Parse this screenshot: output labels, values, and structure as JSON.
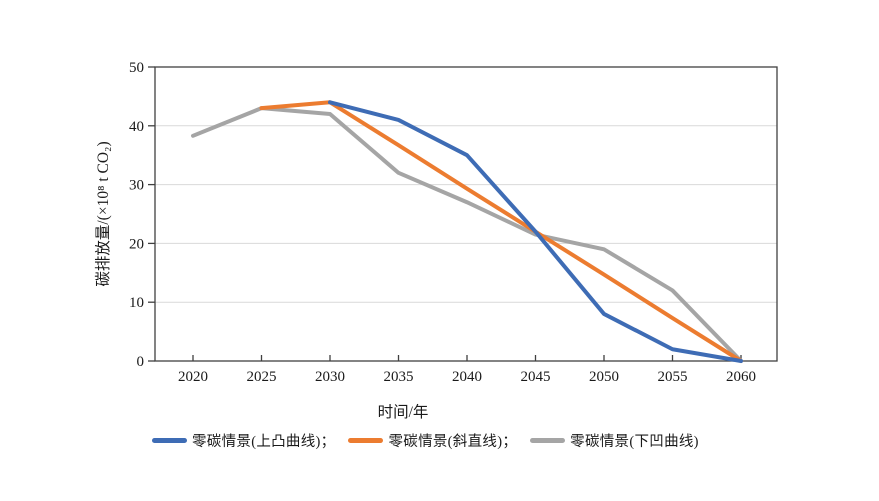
{
  "figure": {
    "background": "#ffffff"
  },
  "chart_data": {
    "type": "line",
    "title": "",
    "xlabel": "时间/年",
    "ylabel": "碳排放量/(×10⁸ t CO₂)",
    "x": [
      2020,
      2025,
      2030,
      2035,
      2040,
      2045,
      2050,
      2055,
      2060
    ],
    "x_tick_labels": [
      "2020",
      "2025",
      "2030",
      "2035",
      "2040",
      "2045",
      "2050",
      "2055",
      "2060"
    ],
    "y_ticks": [
      0,
      10,
      20,
      30,
      40,
      50
    ],
    "ylim": [
      0,
      50
    ],
    "grid": "horizontal",
    "legend_position": "bottom",
    "series": [
      {
        "name": "零碳情景(上凸曲线)",
        "key": "convex-up",
        "color": "#3E6CB5",
        "visible_from": 2030,
        "values": [
          38.3,
          43,
          44,
          41,
          35,
          22,
          8,
          2,
          0
        ]
      },
      {
        "name": "零碳情景(斜直线)",
        "key": "straight",
        "color": "#EC7C30",
        "visible_from": 2025,
        "values": [
          38.3,
          43,
          44,
          36.7,
          29.3,
          22,
          14.7,
          7.3,
          0
        ]
      },
      {
        "name": "零碳情景(下凹曲线)",
        "key": "concave-down",
        "color": "#A5A5A5",
        "visible_from": 2020,
        "values": [
          38.3,
          43,
          42,
          32,
          27,
          21.5,
          19,
          12,
          0
        ]
      }
    ],
    "style": {
      "axis_color": "#404040",
      "grid_color": "#D9D9D9",
      "line_width": 4
    }
  },
  "legend": {
    "items": [
      {
        "label": "零碳情景(上凸曲线)；"
      },
      {
        "label": "零碳情景(斜直线)；"
      },
      {
        "label": "零碳情景(下凹曲线)"
      }
    ]
  }
}
